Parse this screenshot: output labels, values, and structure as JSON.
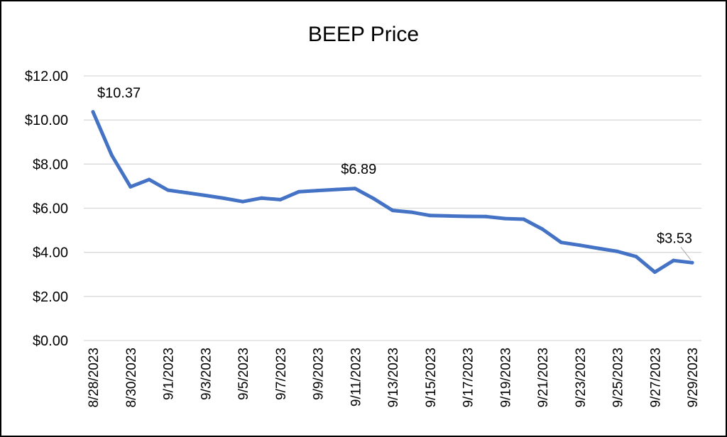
{
  "colors": {
    "line": "#4472C4",
    "grid": "#d9d9d9",
    "text": "#000000",
    "callout": "#a6a6a6"
  },
  "chart_data": {
    "type": "line",
    "title": "BEEP Price",
    "xlabel": "",
    "ylabel": "",
    "ylim": [
      0,
      12
    ],
    "grid": "horizontal",
    "y_ticks": [
      "$0.00",
      "$2.00",
      "$4.00",
      "$6.00",
      "$8.00",
      "$10.00",
      "$12.00"
    ],
    "x_tick_labels": [
      "8/28/2023",
      "8/30/2023",
      "9/1/2023",
      "9/3/2023",
      "9/5/2023",
      "9/7/2023",
      "9/9/2023",
      "9/11/2023",
      "9/13/2023",
      "9/15/2023",
      "9/17/2023",
      "9/19/2023",
      "9/21/2023",
      "9/23/2023",
      "9/25/2023",
      "9/27/2023",
      "9/29/2023"
    ],
    "categories": [
      "8/28/2023",
      "8/29/2023",
      "8/30/2023",
      "8/31/2023",
      "9/1/2023",
      "9/2/2023",
      "9/3/2023",
      "9/4/2023",
      "9/5/2023",
      "9/6/2023",
      "9/7/2023",
      "9/8/2023",
      "9/9/2023",
      "9/10/2023",
      "9/11/2023",
      "9/12/2023",
      "9/13/2023",
      "9/14/2023",
      "9/15/2023",
      "9/16/2023",
      "9/17/2023",
      "9/18/2023",
      "9/19/2023",
      "9/20/2023",
      "9/21/2023",
      "9/22/2023",
      "9/23/2023",
      "9/24/2023",
      "9/25/2023",
      "9/26/2023",
      "9/27/2023",
      "9/28/2023",
      "9/29/2023"
    ],
    "series": [
      {
        "values": [
          10.37,
          8.4,
          6.97,
          7.3,
          6.82,
          6.7,
          6.58,
          6.45,
          6.3,
          6.46,
          6.39,
          6.75,
          6.8,
          6.85,
          6.89,
          6.43,
          5.9,
          5.82,
          5.67,
          5.65,
          5.63,
          5.62,
          5.53,
          5.5,
          5.05,
          4.45,
          4.32,
          4.18,
          4.04,
          3.81,
          3.1,
          3.63,
          3.53
        ]
      }
    ],
    "data_labels": [
      {
        "category": "8/28/2023",
        "text": "$10.37"
      },
      {
        "category": "9/11/2023",
        "text": "$6.89"
      },
      {
        "category": "9/29/2023",
        "text": "$3.53"
      }
    ]
  }
}
